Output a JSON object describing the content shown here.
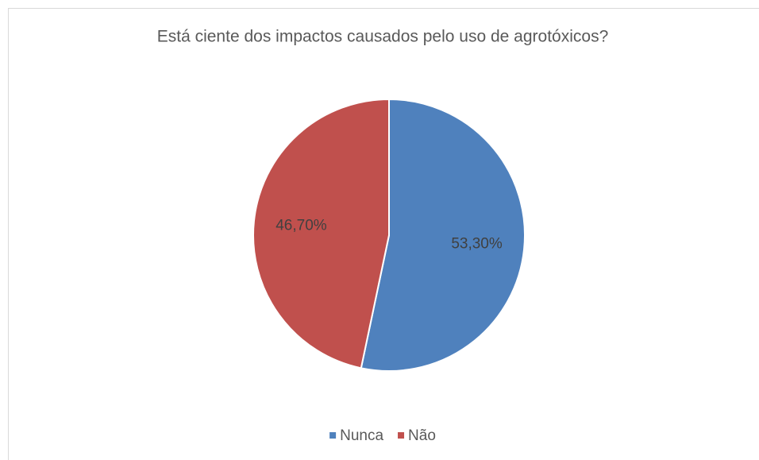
{
  "chart_data": {
    "type": "pie",
    "title": "Está ciente dos impactos causados pelo uso de agrotóxicos?",
    "categories": [
      "Nunca",
      "Não"
    ],
    "values": [
      53.3,
      46.7
    ],
    "value_labels": [
      "53,30%",
      "46,70%"
    ],
    "colors": [
      "#4f81bd",
      "#c0504d"
    ],
    "legend": "bottom"
  }
}
